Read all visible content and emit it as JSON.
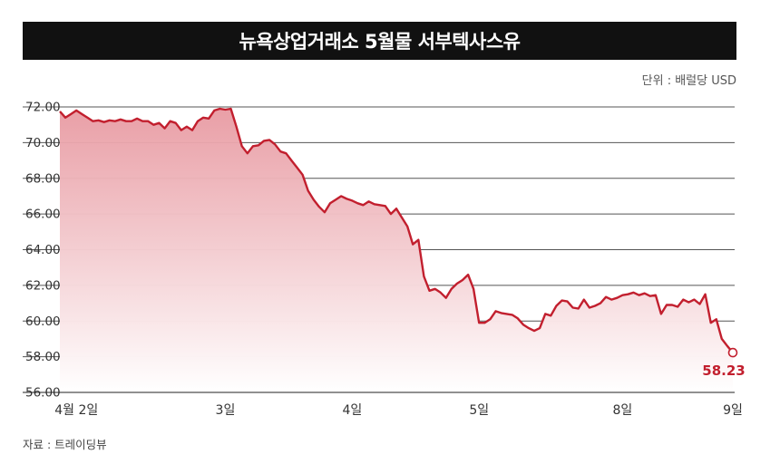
{
  "header": {
    "title": "뉴욕상업거래소 5월물 서부텍사스유",
    "unit": "단위 : 배럴당 USD"
  },
  "footer": {
    "source": "자료 : 트레이딩뷰"
  },
  "colors": {
    "line": "#c21f2e",
    "fill_top": "#e89aa2",
    "fill_bottom": "#ffffff",
    "title_bg": "#111111",
    "grid": "#555555"
  },
  "chart_data": {
    "type": "area",
    "title": "뉴욕상업거래소 5월물 서부텍사스유",
    "ylabel": "단위 : 배럴당 USD",
    "ylim": [
      56,
      72
    ],
    "y_ticks": [
      "72.00",
      "70.00",
      "68.00",
      "66.00",
      "64.00",
      "62.00",
      "60.00",
      "58.00",
      "56.00"
    ],
    "x_tick_labels": [
      {
        "label": "4월 2일",
        "index": 3
      },
      {
        "label": "3일",
        "index": 30
      },
      {
        "label": "4일",
        "index": 53
      },
      {
        "label": "5일",
        "index": 76
      },
      {
        "label": "8일",
        "index": 102
      },
      {
        "label": "9일",
        "index": 122
      }
    ],
    "grid": true,
    "last_value_label": "58.23",
    "values": [
      71.75,
      71.4,
      71.6,
      71.8,
      71.6,
      71.4,
      71.2,
      71.25,
      71.15,
      71.25,
      71.2,
      71.3,
      71.2,
      71.2,
      71.35,
      71.2,
      71.2,
      71.0,
      71.1,
      70.8,
      71.2,
      71.1,
      70.7,
      70.9,
      70.7,
      71.2,
      71.4,
      71.35,
      71.8,
      71.9,
      71.85,
      71.9,
      70.9,
      69.8,
      69.4,
      69.8,
      69.85,
      70.1,
      70.15,
      69.9,
      69.5,
      69.4,
      69.0,
      68.6,
      68.2,
      67.3,
      66.8,
      66.4,
      66.1,
      66.6,
      66.8,
      67.0,
      66.85,
      66.75,
      66.6,
      66.5,
      66.7,
      66.55,
      66.5,
      66.45,
      66.0,
      66.3,
      65.8,
      65.3,
      64.3,
      64.55,
      62.5,
      61.7,
      61.8,
      61.6,
      61.3,
      61.8,
      62.1,
      62.3,
      62.6,
      61.8,
      59.9,
      59.9,
      60.1,
      60.55,
      60.45,
      60.4,
      60.35,
      60.15,
      59.8,
      59.6,
      59.45,
      59.6,
      60.4,
      60.3,
      60.85,
      61.15,
      61.1,
      60.75,
      60.7,
      61.2,
      60.75,
      60.85,
      61.0,
      61.35,
      61.2,
      61.3,
      61.45,
      61.5,
      61.6,
      61.45,
      61.55,
      61.4,
      61.45,
      60.4,
      60.9,
      60.9,
      60.8,
      61.2,
      61.05,
      61.2,
      60.95,
      61.5,
      59.9,
      60.1,
      59.0,
      58.6,
      58.23
    ]
  }
}
